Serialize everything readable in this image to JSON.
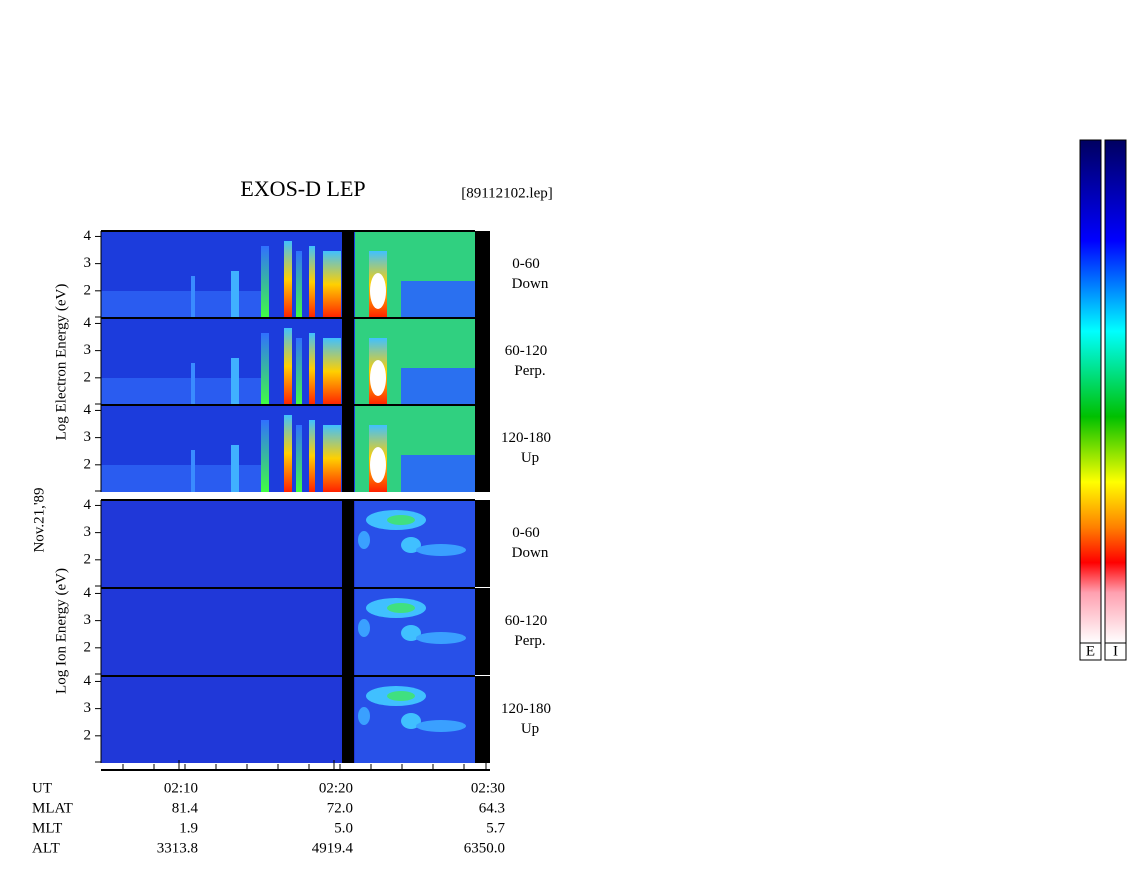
{
  "title": "EXOS-D LEP",
  "file": "[89112102.lep]",
  "date": "Nov.21,'89",
  "electron_axis_label": "Log  Electron  Energy (eV)",
  "ion_axis_label": "Log  Ion  Energy (eV)",
  "energy_range": [
    1,
    4.2
  ],
  "energy_ticks": [
    2,
    3,
    4
  ],
  "electron_panels": [
    {
      "angle": "0-60",
      "direction": "Down"
    },
    {
      "angle": "60-120",
      "direction": "Perp."
    },
    {
      "angle": "120-180",
      "direction": "Up"
    }
  ],
  "ion_panels": [
    {
      "angle": "0-60",
      "direction": "Down"
    },
    {
      "angle": "60-120",
      "direction": "Perp."
    },
    {
      "angle": "120-180",
      "direction": "Up"
    }
  ],
  "ut_label": "UT",
  "time_ticks": [
    "02:10",
    "02:20",
    "02:30"
  ],
  "ephemeris": [
    {
      "label": "MLAT",
      "values": [
        "81.4",
        "72.0",
        "64.3"
      ]
    },
    {
      "label": "MLT",
      "values": [
        "1.9",
        "5.0",
        "5.7"
      ]
    },
    {
      "label": "ALT",
      "values": [
        "3313.8",
        "4919.4",
        "6350.0"
      ]
    }
  ],
  "colorbars": [
    "E",
    "I"
  ]
}
